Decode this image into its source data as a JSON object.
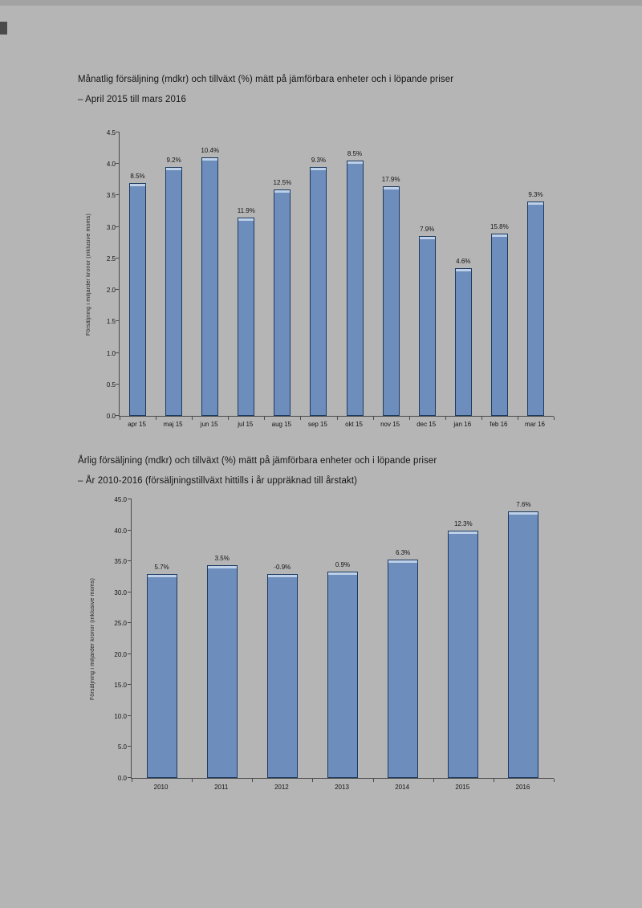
{
  "page": {
    "background": "#b5b5b5"
  },
  "chart_data": [
    {
      "type": "bar",
      "title": "Månatlig försäljning (mdkr) och tillväxt (%) mätt på jämförbara enheter och i löpande priser",
      "subtitle": "– April 2015 till mars 2016",
      "ylabel": "Försäljning i miljarder kronor (inklusive moms)",
      "xlabel": "",
      "ylim": [
        0,
        4.5
      ],
      "yticks": [
        "0.0",
        "0.5",
        "1.0",
        "1.5",
        "2.0",
        "2.5",
        "3.0",
        "3.5",
        "4.0",
        "4.5"
      ],
      "categories": [
        "apr 15",
        "maj 15",
        "jun 15",
        "jul 15",
        "aug 15",
        "sep 15",
        "okt 15",
        "nov 15",
        "dec 15",
        "jan 16",
        "feb 16",
        "mar 16"
      ],
      "values": [
        3.7,
        3.95,
        4.1,
        3.15,
        3.6,
        3.95,
        4.05,
        3.65,
        2.85,
        2.35,
        2.9,
        3.4
      ],
      "bar_labels": [
        "8.5%",
        "9.2%",
        "10.4%",
        "11.9%",
        "12.5%",
        "9.3%",
        "8.5%",
        "17.9%",
        "7.9%",
        "4.6%",
        "15.8%",
        "9.3%"
      ],
      "bar_color": "#6d8ebd",
      "bar_border": "#1d3a5f",
      "grid": false,
      "legend": "none"
    },
    {
      "type": "bar",
      "title": "Årlig försäljning (mdkr) och tillväxt (%) mätt på jämförbara enheter och i löpande priser",
      "subtitle": "– År 2010-2016 (försäljningstillväxt hittills i år uppräknad till årstakt)",
      "ylabel": "Försäljning i miljarder kronor (inklusive moms)",
      "xlabel": "",
      "ylim": [
        0,
        45
      ],
      "yticks": [
        "0.0",
        "5.0",
        "10.0",
        "15.0",
        "20.0",
        "25.0",
        "30.0",
        "35.0",
        "40.0",
        "45.0"
      ],
      "categories": [
        "2010",
        "2011",
        "2012",
        "2013",
        "2014",
        "2015",
        "2016"
      ],
      "values": [
        33.0,
        34.4,
        33.0,
        33.3,
        35.3,
        39.9,
        43.0
      ],
      "bar_labels": [
        "5.7%",
        "3.5%",
        "-0.9%",
        "0.9%",
        "6.3%",
        "12.3%",
        "7.6%"
      ],
      "bar_color": "#6d8ebd",
      "bar_border": "#1d3a5f",
      "grid": false,
      "legend": "none"
    }
  ]
}
